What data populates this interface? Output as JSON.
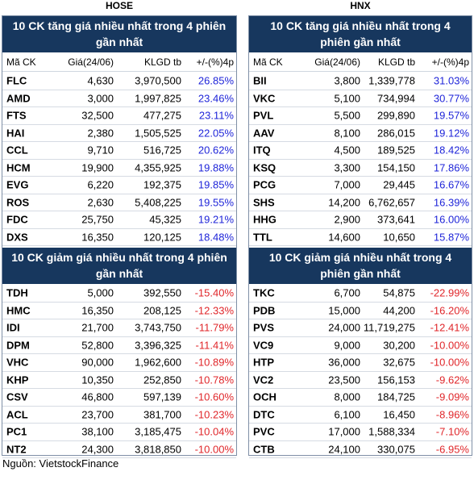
{
  "exchanges": {
    "hose": {
      "name": "HOSE",
      "up_title": "10 CK tăng giá nhiều nhất trong 4 phiên gần nhất",
      "down_title": "10 CK giảm giá nhiều nhất trong 4 phiên gần nhất",
      "columns": {
        "symbol": "Mã CK",
        "price": "Giá(24/06)",
        "volume": "KLGD tb",
        "change": "+/-(%)4p"
      },
      "up_rows": [
        {
          "symbol": "FLC",
          "price": "4,630",
          "volume": "3,970,500",
          "change": "26.85%"
        },
        {
          "symbol": "AMD",
          "price": "3,000",
          "volume": "1,997,825",
          "change": "23.46%"
        },
        {
          "symbol": "FTS",
          "price": "32,500",
          "volume": "477,275",
          "change": "23.11%"
        },
        {
          "symbol": "HAI",
          "price": "2,380",
          "volume": "1,505,525",
          "change": "22.05%"
        },
        {
          "symbol": "CCL",
          "price": "9,710",
          "volume": "516,725",
          "change": "20.62%"
        },
        {
          "symbol": "HCM",
          "price": "19,900",
          "volume": "4,355,925",
          "change": "19.88%"
        },
        {
          "symbol": "EVG",
          "price": "6,220",
          "volume": "192,375",
          "change": "19.85%"
        },
        {
          "symbol": "ROS",
          "price": "2,630",
          "volume": "5,408,225",
          "change": "19.55%"
        },
        {
          "symbol": "FDC",
          "price": "25,750",
          "volume": "45,325",
          "change": "19.21%"
        },
        {
          "symbol": "DXS",
          "price": "16,350",
          "volume": "120,125",
          "change": "18.48%"
        }
      ],
      "down_rows": [
        {
          "symbol": "TDH",
          "price": "5,000",
          "volume": "392,550",
          "change": "-15.40%"
        },
        {
          "symbol": "HMC",
          "price": "16,350",
          "volume": "208,125",
          "change": "-12.33%"
        },
        {
          "symbol": "IDI",
          "price": "21,700",
          "volume": "3,743,750",
          "change": "-11.79%"
        },
        {
          "symbol": "DPM",
          "price": "52,800",
          "volume": "3,396,325",
          "change": "-11.41%"
        },
        {
          "symbol": "VHC",
          "price": "90,000",
          "volume": "1,962,600",
          "change": "-10.89%"
        },
        {
          "symbol": "KHP",
          "price": "10,350",
          "volume": "252,850",
          "change": "-10.78%"
        },
        {
          "symbol": "CSV",
          "price": "46,800",
          "volume": "597,139",
          "change": "-10.60%"
        },
        {
          "symbol": "ACL",
          "price": "23,700",
          "volume": "381,700",
          "change": "-10.23%"
        },
        {
          "symbol": "PC1",
          "price": "38,100",
          "volume": "3,185,475",
          "change": "-10.04%"
        },
        {
          "symbol": "NT2",
          "price": "24,300",
          "volume": "3,818,850",
          "change": "-10.00%"
        }
      ]
    },
    "hnx": {
      "name": "HNX",
      "up_title": "10 CK tăng giá nhiều nhất trong 4 phiên gần nhất",
      "down_title": "10 CK giảm giá nhiều nhất trong 4 phiên gần nhất",
      "columns": {
        "symbol": "Mã CK",
        "price": "Giá(24/06)",
        "volume": "KLGD tb",
        "change": "+/-(%)4p"
      },
      "up_rows": [
        {
          "symbol": "BII",
          "price": "3,800",
          "volume": "1,339,778",
          "change": "31.03%"
        },
        {
          "symbol": "VKC",
          "price": "5,100",
          "volume": "734,994",
          "change": "30.77%"
        },
        {
          "symbol": "PVL",
          "price": "5,500",
          "volume": "299,890",
          "change": "19.57%"
        },
        {
          "symbol": "AAV",
          "price": "8,100",
          "volume": "286,015",
          "change": "19.12%"
        },
        {
          "symbol": "ITQ",
          "price": "4,500",
          "volume": "189,525",
          "change": "18.42%"
        },
        {
          "symbol": "KSQ",
          "price": "3,300",
          "volume": "154,150",
          "change": "17.86%"
        },
        {
          "symbol": "PCG",
          "price": "7,000",
          "volume": "29,445",
          "change": "16.67%"
        },
        {
          "symbol": "SHS",
          "price": "14,200",
          "volume": "6,762,657",
          "change": "16.39%"
        },
        {
          "symbol": "HHG",
          "price": "2,900",
          "volume": "373,641",
          "change": "16.00%"
        },
        {
          "symbol": "TTL",
          "price": "14,600",
          "volume": "10,650",
          "change": "15.87%"
        }
      ],
      "down_rows": [
        {
          "symbol": "TKC",
          "price": "6,700",
          "volume": "54,875",
          "change": "-22.99%"
        },
        {
          "symbol": "PDB",
          "price": "15,000",
          "volume": "44,200",
          "change": "-16.20%"
        },
        {
          "symbol": "PVS",
          "price": "24,000",
          "volume": "11,719,275",
          "change": "-12.41%"
        },
        {
          "symbol": "VC9",
          "price": "9,000",
          "volume": "30,200",
          "change": "-10.00%"
        },
        {
          "symbol": "HTP",
          "price": "36,000",
          "volume": "32,675",
          "change": "-10.00%"
        },
        {
          "symbol": "VC2",
          "price": "23,500",
          "volume": "156,153",
          "change": "-9.62%"
        },
        {
          "symbol": "OCH",
          "price": "8,000",
          "volume": "184,725",
          "change": "-9.09%"
        },
        {
          "symbol": "DTC",
          "price": "6,100",
          "volume": "16,450",
          "change": "-8.96%"
        },
        {
          "symbol": "PVC",
          "price": "17,000",
          "volume": "1,588,334",
          "change": "-7.10%"
        },
        {
          "symbol": "CTB",
          "price": "24,100",
          "volume": "330,075",
          "change": "-6.95%"
        }
      ]
    }
  },
  "source": "Nguồn: VietstockFinance",
  "colors": {
    "header_bg": "#17375e",
    "up": "#1f25d9",
    "down": "#e0262a"
  }
}
